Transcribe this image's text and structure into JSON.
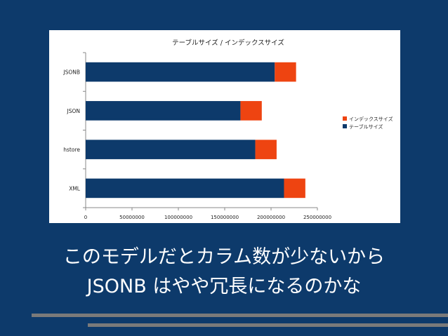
{
  "chart_data": {
    "type": "bar",
    "orientation": "horizontal",
    "stacked": true,
    "title": "テーブルサイズ / インデックスサイズ",
    "categories": [
      "JSONB",
      "JSON",
      "hstore",
      "XML"
    ],
    "series": [
      {
        "name": "テーブルサイズ",
        "color": "#0d3a6b",
        "values": [
          204000000,
          167000000,
          183000000,
          214000000
        ]
      },
      {
        "name": "インデックスサイズ",
        "color": "#ee4411",
        "values": [
          23000000,
          23000000,
          23000000,
          23000000
        ]
      }
    ],
    "xlim": [
      0,
      250000000
    ],
    "xticks": [
      0,
      50000000,
      100000000,
      150000000,
      200000000,
      250000000
    ],
    "xtick_labels": [
      "0",
      "50000000",
      "100000000",
      "150000000",
      "200000000",
      "250000000"
    ],
    "grid": false,
    "legend": "right"
  },
  "caption": {
    "line1": "このモデルだとカラム数が少ないから",
    "line2": "JSONB はやや冗長になるのかな"
  }
}
